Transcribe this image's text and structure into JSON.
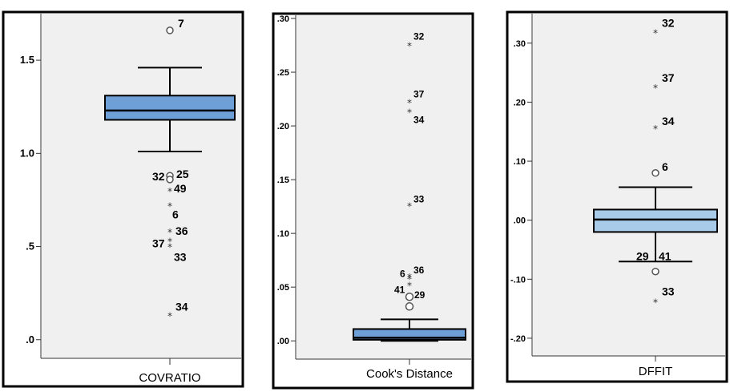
{
  "chart_data": [
    {
      "type": "box",
      "xlabel": "COVRATIO",
      "yticks": [
        ".0",
        ".5",
        "1.0",
        "1.5"
      ],
      "ytick_values": [
        0.0,
        0.5,
        1.0,
        1.5
      ],
      "ylim": [
        -0.1,
        1.75
      ],
      "box": {
        "q1": 1.18,
        "median": 1.23,
        "q3": 1.31,
        "whisker_low": 1.01,
        "whisker_high": 1.46
      },
      "outliers": [
        {
          "label": "7",
          "value": 1.66,
          "marker": "circle"
        },
        {
          "label": "32",
          "value": 0.88,
          "marker": "circle"
        },
        {
          "label": "25",
          "value": 0.86,
          "marker": "circle"
        },
        {
          "label": "49",
          "value": 0.8,
          "marker": "star"
        },
        {
          "label": "6",
          "value": 0.72,
          "marker": "star"
        },
        {
          "label": "36",
          "value": 0.58,
          "marker": "star"
        },
        {
          "label": "37",
          "value": 0.53,
          "marker": "star"
        },
        {
          "label": "33",
          "value": 0.5,
          "marker": "star"
        },
        {
          "label": "34",
          "value": 0.13,
          "marker": "star"
        }
      ],
      "box_color": "#6f9fd7"
    },
    {
      "type": "box",
      "xlabel": "Cook's Distance",
      "yticks": [
        ".00",
        ".05",
        ".10",
        ".15",
        ".20",
        ".25",
        ".30"
      ],
      "ytick_values": [
        0.0,
        0.05,
        0.1,
        0.15,
        0.2,
        0.25,
        0.3
      ],
      "ylim": [
        -0.017,
        0.303
      ],
      "box": {
        "q1": 0.001,
        "median": 0.003,
        "q3": 0.011,
        "whisker_low": 0.0,
        "whisker_high": 0.02
      },
      "outliers": [
        {
          "label": "32",
          "value": 0.275,
          "marker": "star"
        },
        {
          "label": "37",
          "value": 0.222,
          "marker": "star"
        },
        {
          "label": "34",
          "value": 0.213,
          "marker": "star"
        },
        {
          "label": "33",
          "value": 0.126,
          "marker": "star"
        },
        {
          "label": "36",
          "value": 0.06,
          "marker": "star"
        },
        {
          "label": "6",
          "value": 0.058,
          "marker": "star"
        },
        {
          "label": "41",
          "value": 0.052,
          "marker": "star"
        },
        {
          "label": "29",
          "value": 0.041,
          "marker": "circle"
        },
        {
          "label": "",
          "value": 0.032,
          "marker": "circle"
        }
      ],
      "box_color": "#6f9fd7"
    },
    {
      "type": "box",
      "xlabel": "DFFIT",
      "yticks": [
        "-.20",
        "-.10",
        ".00",
        ".10",
        ".20",
        ".30"
      ],
      "ytick_values": [
        -0.2,
        -0.1,
        0.0,
        0.1,
        0.2,
        0.3
      ],
      "ylim": [
        -0.23,
        0.35
      ],
      "box": {
        "q1": -0.02,
        "median": 0.001,
        "q3": 0.018,
        "whisker_low": -0.07,
        "whisker_high": 0.056
      },
      "outliers": [
        {
          "label": "32",
          "value": 0.318,
          "marker": "star"
        },
        {
          "label": "37",
          "value": 0.225,
          "marker": "star"
        },
        {
          "label": "34",
          "value": 0.156,
          "marker": "star"
        },
        {
          "label": "6",
          "value": 0.08,
          "marker": "circle"
        },
        {
          "label": "29",
          "value": -0.068,
          "marker": "none"
        },
        {
          "label": "41",
          "value": -0.068,
          "marker": "none"
        },
        {
          "label": "",
          "value": -0.087,
          "marker": "circle"
        },
        {
          "label": "33",
          "value": -0.138,
          "marker": "star"
        }
      ],
      "box_color": "#a9cbea"
    }
  ]
}
